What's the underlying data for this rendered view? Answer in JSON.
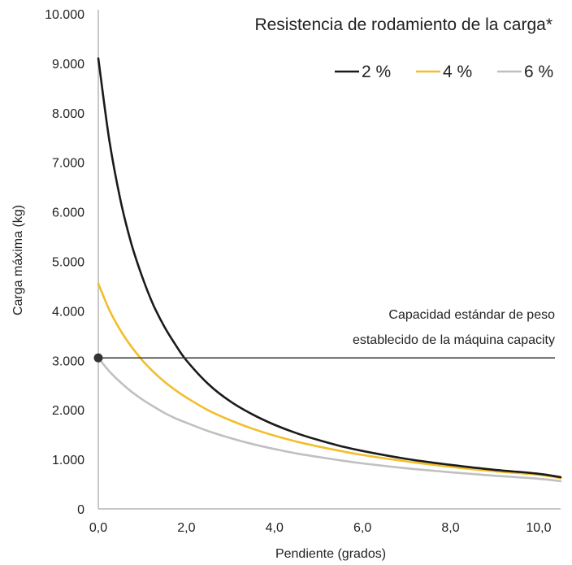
{
  "chart_data": {
    "type": "line",
    "title": "Resistencia de rodamiento de la carga*",
    "xlabel": "Pendiente (grados)",
    "ylabel": "Carga máxima (kg)",
    "xlim": [
      0,
      10.5
    ],
    "ylim": [
      0,
      10000
    ],
    "x_ticks": [
      "0,0",
      "2,0",
      "4,0",
      "6,0",
      "8,0",
      "10,0"
    ],
    "x_tick_values": [
      0,
      2,
      4,
      6,
      8,
      10
    ],
    "y_ticks": [
      "0",
      "1.000",
      "2.000",
      "3.000",
      "4.000",
      "5.000",
      "6.000",
      "7.000",
      "8.000",
      "9.000",
      "10.000"
    ],
    "y_tick_values": [
      0,
      1000,
      2000,
      3000,
      4000,
      5000,
      6000,
      7000,
      8000,
      9000,
      10000
    ],
    "grid": false,
    "legend": "top-right",
    "x": [
      0,
      0.25,
      0.5,
      0.75,
      1,
      1.25,
      1.5,
      1.75,
      2,
      2.5,
      3,
      3.5,
      4,
      4.5,
      5,
      5.5,
      6,
      7,
      8,
      9,
      10,
      10.5
    ],
    "series": [
      {
        "name": "2 %",
        "color": "#1a1a1a",
        "values": [
          9100,
          7450,
          6250,
          5360,
          4680,
          4120,
          3680,
          3320,
          3000,
          2520,
          2170,
          1910,
          1700,
          1530,
          1390,
          1270,
          1170,
          1010,
          890,
          790,
          710,
          640
        ]
      },
      {
        "name": "4 %",
        "color": "#f2be2a",
        "values": [
          4550,
          4020,
          3610,
          3280,
          3000,
          2770,
          2570,
          2400,
          2250,
          1990,
          1790,
          1620,
          1480,
          1360,
          1260,
          1170,
          1090,
          960,
          850,
          760,
          690,
          620
        ]
      },
      {
        "name": "6 %",
        "color": "#c0c0c0",
        "values": [
          3050,
          2780,
          2560,
          2370,
          2210,
          2070,
          1940,
          1830,
          1740,
          1570,
          1430,
          1310,
          1210,
          1120,
          1050,
          980,
          920,
          820,
          740,
          670,
          610,
          560
        ]
      }
    ],
    "reference_line": {
      "y": 3050,
      "color": "#333333",
      "marker_x": 0,
      "label_lines": [
        "Capacidad estándar de peso",
        "establecido de la máquina capacity"
      ]
    }
  }
}
